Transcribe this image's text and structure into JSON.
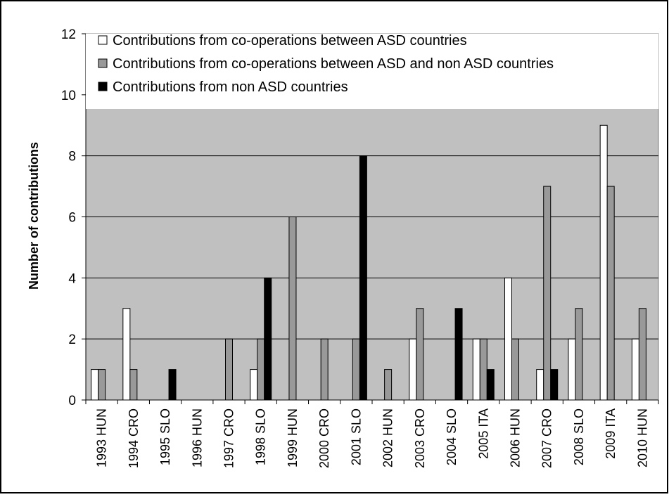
{
  "chart_data": {
    "type": "bar",
    "title": "",
    "xlabel": "",
    "ylabel": "Number of contributions",
    "ylim": [
      0,
      12
    ],
    "yticks": [
      0,
      2,
      4,
      6,
      8,
      10,
      12
    ],
    "grid": true,
    "legend_position": "top-left, inside plot",
    "categories": [
      "1993 HUN",
      "1994 CRO",
      "1995 SLO",
      "1996 HUN",
      "1997 CRO",
      "1998 SLO",
      "1999 HUN",
      "2000 CRO",
      "2001 SLO",
      "2002 HUN",
      "2003 CRO",
      "2004 SLO",
      "2005 ITA",
      "2006 HUN",
      "2007 CRO",
      "2008 SLO",
      "2009 ITA",
      "2010 HUN"
    ],
    "series": [
      {
        "name": "Contributions from co-operations between ASD countries",
        "color": "#ffffff",
        "values": [
          1,
          3,
          0,
          0,
          0,
          1,
          0,
          0,
          0,
          0,
          2,
          0,
          2,
          4,
          1,
          2,
          9,
          2
        ]
      },
      {
        "name": "Contributions from co-operations between ASD and non ASD countries",
        "color": "#999999",
        "values": [
          1,
          1,
          0,
          0,
          2,
          2,
          6,
          2,
          2,
          1,
          3,
          0,
          2,
          2,
          7,
          3,
          7,
          3
        ]
      },
      {
        "name": "Contributions from non ASD countries",
        "color": "#000000",
        "values": [
          0,
          0,
          1,
          0,
          0,
          4,
          0,
          0,
          8,
          0,
          0,
          3,
          1,
          0,
          1,
          0,
          0,
          0
        ]
      }
    ],
    "plot_background": "#c0c0c0",
    "gridline_color": "#000000"
  }
}
